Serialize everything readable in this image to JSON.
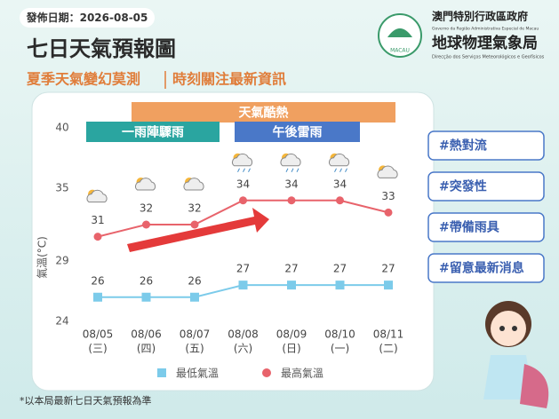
{
  "header": {
    "date": "發佈日期：2026-08-05",
    "title": "七日天氣預報圖",
    "subtitle_left": "夏季天氣變幻莫測",
    "subtitle_right": "時刻關注最新資訊"
  },
  "logo": {
    "government": "澳門特別行政區政府",
    "government_pt": "Governo da Região Administrativa Especial de Macau",
    "bureau": "地球物理氣象局",
    "bureau_pt": "Direcção dos Serviços Meteorológicos e Geofísicos",
    "emblem": "MACAU"
  },
  "tags": [
    "#熱對流",
    "#突發性",
    "#帶備雨具",
    "#留意最新消息"
  ],
  "footnote": "*以本局最新七日天氣預報為準",
  "chart_data": {
    "type": "line",
    "y_label": "氣溫(°C)",
    "categories": [
      "08/05",
      "08/06",
      "08/07",
      "08/08",
      "08/09",
      "08/10",
      "08/11"
    ],
    "weekdays": [
      "(三)",
      "(四)",
      "(五)",
      "(六)",
      "(日)",
      "(一)",
      "(二)"
    ],
    "annotations": [
      "天氣酷熱",
      "一雨陣驟雨",
      "午後雷雨"
    ],
    "ylim": [
      24,
      40
    ],
    "yticks": [
      24,
      29,
      35,
      40
    ],
    "series": [
      {
        "name": "最低氣溫",
        "color": "#7ccbea",
        "values": [
          26,
          26,
          26,
          27,
          27,
          27,
          27
        ]
      },
      {
        "name": "最高氣溫",
        "color": "#e8636b",
        "values": [
          31,
          32,
          32,
          34,
          34,
          34,
          33
        ]
      }
    ]
  }
}
